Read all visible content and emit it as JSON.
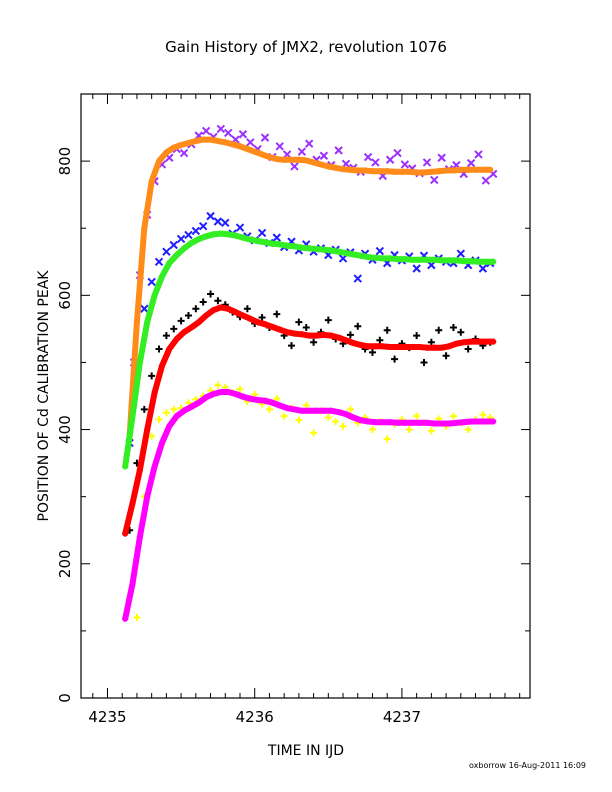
{
  "chart_data": {
    "type": "scatter",
    "title": "Gain History of JMX2, revolution 1076",
    "xlabel": "TIME IN IJD",
    "ylabel": "POSITION OF Cd CALIBRATION PEAK",
    "xlim": [
      4234.82,
      4237.87
    ],
    "ylim": [
      0,
      900
    ],
    "xticks": [
      "4235",
      "4236",
      "4237"
    ],
    "yticks": [
      "0",
      "200",
      "400",
      "600",
      "800"
    ],
    "grid": false,
    "legend": "none",
    "credit": "oxborrow 16-Aug-2011 16:09",
    "series": [
      {
        "marker": "x",
        "color": "#9b30ff",
        "style": "points",
        "x": [
          4235.18,
          4235.22,
          4235.27,
          4235.32,
          4235.37,
          4235.42,
          4235.47,
          4235.52,
          4235.57,
          4235.62,
          4235.67,
          4235.72,
          4235.77,
          4235.82,
          4235.87,
          4235.92,
          4235.97,
          4236.02,
          4236.07,
          4236.12,
          4236.17,
          4236.22,
          4236.27,
          4236.32,
          4236.37,
          4236.42,
          4236.47,
          4236.52,
          4236.57,
          4236.62,
          4236.67,
          4236.72,
          4236.77,
          4236.82,
          4236.87,
          4236.92,
          4236.97,
          4237.02,
          4237.07,
          4237.12,
          4237.17,
          4237.22,
          4237.27,
          4237.32,
          4237.37,
          4237.42,
          4237.47,
          4237.52,
          4237.57,
          4237.62
        ],
        "y": [
          500,
          630,
          720,
          770,
          795,
          805,
          818,
          812,
          825,
          838,
          845,
          836,
          848,
          842,
          832,
          840,
          828,
          818,
          835,
          806,
          822,
          810,
          792,
          814,
          826,
          802,
          808,
          794,
          816,
          796,
          790,
          784,
          806,
          798,
          778,
          802,
          812,
          795,
          789,
          782,
          798,
          772,
          805,
          788,
          794,
          781,
          797,
          810,
          771,
          781
        ]
      },
      {
        "marker": "x",
        "color": "#1f1fff",
        "style": "points",
        "x": [
          4235.15,
          4235.2,
          4235.25,
          4235.3,
          4235.35,
          4235.4,
          4235.45,
          4235.5,
          4235.55,
          4235.6,
          4235.65,
          4235.7,
          4235.75,
          4235.8,
          4235.85,
          4235.9,
          4235.95,
          4236.0,
          4236.05,
          4236.1,
          4236.15,
          4236.2,
          4236.25,
          4236.3,
          4236.35,
          4236.4,
          4236.45,
          4236.5,
          4236.55,
          4236.6,
          4236.65,
          4236.7,
          4236.75,
          4236.8,
          4236.85,
          4236.9,
          4236.95,
          4237.0,
          4237.05,
          4237.1,
          4237.15,
          4237.2,
          4237.25,
          4237.3,
          4237.35,
          4237.4,
          4237.45,
          4237.5,
          4237.55,
          4237.6
        ],
        "y": [
          380,
          500,
          580,
          620,
          650,
          665,
          675,
          684,
          690,
          696,
          703,
          718,
          710,
          708,
          692,
          701,
          688,
          682,
          693,
          678,
          686,
          672,
          680,
          667,
          676,
          665,
          670,
          660,
          668,
          655,
          664,
          625,
          662,
          653,
          666,
          648,
          660,
          652,
          658,
          640,
          659,
          645,
          655,
          650,
          648,
          662,
          645,
          652,
          640,
          648
        ]
      },
      {
        "marker": "+",
        "color": "#000000",
        "style": "points",
        "x": [
          4235.15,
          4235.2,
          4235.25,
          4235.3,
          4235.35,
          4235.4,
          4235.45,
          4235.5,
          4235.55,
          4235.6,
          4235.65,
          4235.7,
          4235.75,
          4235.8,
          4235.85,
          4235.9,
          4235.95,
          4236.0,
          4236.05,
          4236.1,
          4236.15,
          4236.2,
          4236.25,
          4236.3,
          4236.35,
          4236.4,
          4236.45,
          4236.5,
          4236.55,
          4236.6,
          4236.65,
          4236.7,
          4236.75,
          4236.8,
          4236.85,
          4236.9,
          4236.95,
          4237.0,
          4237.05,
          4237.1,
          4237.15,
          4237.2,
          4237.25,
          4237.3,
          4237.35,
          4237.4,
          4237.45,
          4237.5,
          4237.55,
          4237.6
        ],
        "y": [
          250,
          350,
          430,
          480,
          520,
          540,
          550,
          562,
          570,
          580,
          590,
          602,
          592,
          586,
          575,
          568,
          580,
          558,
          567,
          552,
          572,
          540,
          525,
          560,
          552,
          530,
          545,
          563,
          535,
          528,
          541,
          554,
          520,
          515,
          533,
          548,
          505,
          528,
          522,
          540,
          500,
          530,
          548,
          510,
          552,
          545,
          520,
          535,
          525,
          530
        ]
      },
      {
        "marker": "+",
        "color": "#ffff00",
        "style": "points",
        "x": [
          4235.2,
          4235.25,
          4235.3,
          4235.35,
          4235.4,
          4235.45,
          4235.5,
          4235.55,
          4235.6,
          4235.65,
          4235.7,
          4235.75,
          4235.8,
          4235.85,
          4235.9,
          4235.95,
          4236.0,
          4236.05,
          4236.1,
          4236.15,
          4236.2,
          4236.25,
          4236.3,
          4236.35,
          4236.4,
          4236.45,
          4236.5,
          4236.55,
          4236.6,
          4236.65,
          4236.7,
          4236.75,
          4236.8,
          4236.85,
          4236.9,
          4236.95,
          4237.0,
          4237.05,
          4237.1,
          4237.15,
          4237.2,
          4237.25,
          4237.3,
          4237.35,
          4237.4,
          4237.45,
          4237.5,
          4237.55,
          4237.6
        ],
        "y": [
          120,
          300,
          390,
          415,
          425,
          430,
          432,
          440,
          445,
          450,
          458,
          466,
          463,
          455,
          460,
          442,
          452,
          438,
          430,
          446,
          420,
          432,
          414,
          436,
          395,
          428,
          418,
          412,
          405,
          430,
          410,
          418,
          400,
          412,
          386,
          408,
          415,
          400,
          420,
          410,
          398,
          416,
          405,
          420,
          410,
          400,
          415,
          422,
          418
        ]
      },
      {
        "marker": "+",
        "color": "#ff8c1a",
        "style": "line",
        "x": [
          4235.15,
          4235.2,
          4235.25,
          4235.3,
          4235.35,
          4235.4,
          4235.45,
          4235.5,
          4235.55,
          4235.6,
          4235.65,
          4235.7,
          4235.75,
          4235.8,
          4235.85,
          4235.9,
          4235.95,
          4236.0,
          4236.05,
          4236.1,
          4236.15,
          4236.2,
          4236.25,
          4236.3,
          4236.35,
          4236.4,
          4236.45,
          4236.5,
          4236.55,
          4236.6,
          4236.65,
          4236.7,
          4236.75,
          4236.8,
          4236.85,
          4236.9,
          4236.95,
          4237.0,
          4237.05,
          4237.1,
          4237.15,
          4237.2,
          4237.25,
          4237.3,
          4237.35,
          4237.4,
          4237.45,
          4237.5,
          4237.55,
          4237.6
        ],
        "y": [
          390,
          560,
          700,
          770,
          800,
          813,
          820,
          824,
          827,
          830,
          832,
          832,
          830,
          828,
          825,
          822,
          818,
          814,
          810,
          806,
          803,
          802,
          802,
          802,
          801,
          798,
          795,
          792,
          790,
          788,
          787,
          786,
          786,
          785,
          785,
          785,
          784,
          784,
          784,
          783,
          783,
          784,
          785,
          786,
          786,
          787,
          787,
          787,
          787,
          787
        ]
      },
      {
        "marker": "+",
        "color": "#33ee22",
        "style": "line",
        "x": [
          4235.12,
          4235.17,
          4235.22,
          4235.27,
          4235.32,
          4235.37,
          4235.42,
          4235.47,
          4235.52,
          4235.57,
          4235.62,
          4235.67,
          4235.72,
          4235.77,
          4235.82,
          4235.87,
          4235.92,
          4235.97,
          4236.02,
          4236.07,
          4236.12,
          4236.17,
          4236.22,
          4236.27,
          4236.32,
          4236.37,
          4236.42,
          4236.47,
          4236.52,
          4236.57,
          4236.62,
          4236.67,
          4236.72,
          4236.77,
          4236.82,
          4236.87,
          4236.92,
          4236.97,
          4237.02,
          4237.07,
          4237.12,
          4237.17,
          4237.22,
          4237.27,
          4237.32,
          4237.37,
          4237.42,
          4237.47,
          4237.52,
          4237.57,
          4237.62
        ],
        "y": [
          345,
          420,
          500,
          560,
          600,
          628,
          648,
          660,
          670,
          678,
          684,
          688,
          691,
          692,
          691,
          689,
          686,
          683,
          681,
          679,
          677,
          676,
          674,
          673,
          671,
          670,
          669,
          668,
          667,
          665,
          663,
          661,
          659,
          657,
          656,
          655,
          655,
          654,
          654,
          653,
          653,
          653,
          653,
          652,
          652,
          652,
          651,
          651,
          650,
          650,
          650
        ]
      },
      {
        "marker": "+",
        "color": "#ff0000",
        "style": "line",
        "x": [
          4235.12,
          4235.17,
          4235.22,
          4235.27,
          4235.32,
          4235.37,
          4235.42,
          4235.47,
          4235.52,
          4235.57,
          4235.62,
          4235.67,
          4235.72,
          4235.77,
          4235.82,
          4235.87,
          4235.92,
          4235.97,
          4236.02,
          4236.07,
          4236.12,
          4236.17,
          4236.22,
          4236.27,
          4236.32,
          4236.37,
          4236.42,
          4236.47,
          4236.52,
          4236.57,
          4236.62,
          4236.67,
          4236.72,
          4236.77,
          4236.82,
          4236.87,
          4236.92,
          4236.97,
          4237.02,
          4237.07,
          4237.12,
          4237.17,
          4237.22,
          4237.27,
          4237.32,
          4237.37,
          4237.42,
          4237.47,
          4237.52,
          4237.57,
          4237.62
        ],
        "y": [
          245,
          290,
          340,
          400,
          455,
          495,
          520,
          535,
          545,
          552,
          560,
          570,
          578,
          582,
          580,
          575,
          570,
          565,
          560,
          557,
          553,
          549,
          545,
          543,
          542,
          540,
          540,
          541,
          540,
          537,
          533,
          529,
          526,
          524,
          524,
          524,
          523,
          523,
          523,
          523,
          523,
          522,
          522,
          522,
          524,
          528,
          530,
          531,
          531,
          531,
          531
        ]
      },
      {
        "marker": "+",
        "color": "#ff00ff",
        "style": "line",
        "x": [
          4235.12,
          4235.17,
          4235.22,
          4235.27,
          4235.32,
          4235.37,
          4235.42,
          4235.47,
          4235.52,
          4235.57,
          4235.62,
          4235.67,
          4235.72,
          4235.77,
          4235.82,
          4235.87,
          4235.92,
          4235.97,
          4236.02,
          4236.07,
          4236.12,
          4236.17,
          4236.22,
          4236.27,
          4236.32,
          4236.37,
          4236.42,
          4236.47,
          4236.52,
          4236.57,
          4236.62,
          4236.67,
          4236.72,
          4236.77,
          4236.82,
          4236.87,
          4236.92,
          4236.97,
          4237.02,
          4237.07,
          4237.12,
          4237.17,
          4237.22,
          4237.27,
          4237.32,
          4237.37,
          4237.42,
          4237.47,
          4237.52,
          4237.57,
          4237.62
        ],
        "y": [
          118,
          170,
          240,
          300,
          345,
          380,
          405,
          420,
          428,
          434,
          440,
          448,
          453,
          456,
          456,
          453,
          449,
          446,
          444,
          443,
          440,
          436,
          432,
          430,
          428,
          428,
          428,
          428,
          428,
          426,
          423,
          418,
          414,
          412,
          411,
          411,
          411,
          410,
          410,
          410,
          410,
          410,
          409,
          409,
          409,
          410,
          411,
          412,
          412,
          412,
          412
        ]
      }
    ]
  }
}
